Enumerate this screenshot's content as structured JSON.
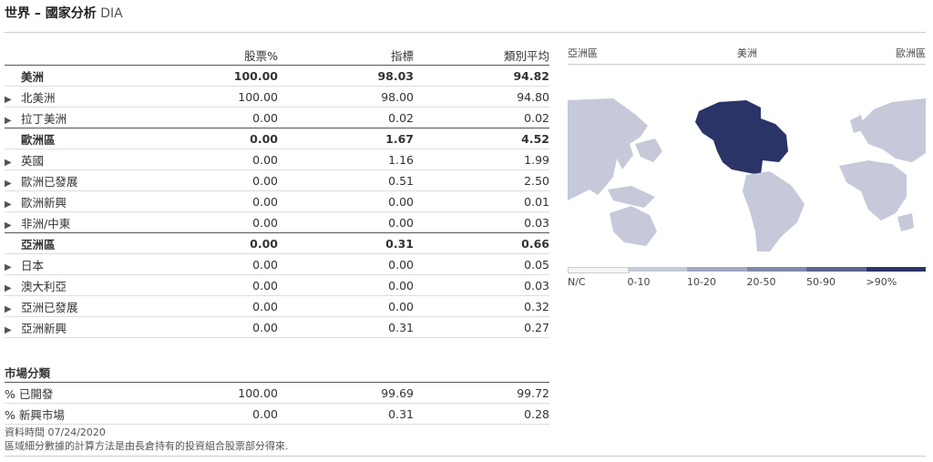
{
  "page": {
    "title": "世界 – 國家分析",
    "fund": "DIA"
  },
  "table": {
    "columns": [
      "股票%",
      "指標",
      "類別平均"
    ],
    "rows": [
      {
        "name": "美洲",
        "group": true,
        "stock": "100.00",
        "index": "98.03",
        "category": "94.82"
      },
      {
        "name": "北美洲",
        "group": false,
        "stock": "100.00",
        "index": "98.00",
        "category": "94.80"
      },
      {
        "name": "拉丁美洲",
        "group": false,
        "stock": "0.00",
        "index": "0.02",
        "category": "0.02"
      },
      {
        "name": "歐洲區",
        "group": true,
        "stock": "0.00",
        "index": "1.67",
        "category": "4.52"
      },
      {
        "name": "英國",
        "group": false,
        "stock": "0.00",
        "index": "1.16",
        "category": "1.99"
      },
      {
        "name": "歐洲已發展",
        "group": false,
        "stock": "0.00",
        "index": "0.51",
        "category": "2.50"
      },
      {
        "name": "歐洲新興",
        "group": false,
        "stock": "0.00",
        "index": "0.00",
        "category": "0.01"
      },
      {
        "name": "非洲/中東",
        "group": false,
        "stock": "0.00",
        "index": "0.00",
        "category": "0.03"
      },
      {
        "name": "亞洲區",
        "group": true,
        "stock": "0.00",
        "index": "0.31",
        "category": "0.66"
      },
      {
        "name": "日本",
        "group": false,
        "stock": "0.00",
        "index": "0.00",
        "category": "0.05"
      },
      {
        "name": "澳大利亞",
        "group": false,
        "stock": "0.00",
        "index": "0.00",
        "category": "0.03"
      },
      {
        "name": "亞洲已發展",
        "group": false,
        "stock": "0.00",
        "index": "0.00",
        "category": "0.32"
      },
      {
        "name": "亞洲新興",
        "group": false,
        "stock": "0.00",
        "index": "0.31",
        "category": "0.27"
      }
    ]
  },
  "market": {
    "title": "市場分類",
    "rows": [
      {
        "name": "% 已開發",
        "stock": "100.00",
        "index": "99.69",
        "category": "99.72"
      },
      {
        "name": "% 新興市場",
        "stock": "0.00",
        "index": "0.31",
        "category": "0.28"
      }
    ]
  },
  "footnote": {
    "date": "資料時間 07/24/2020",
    "note": "區域細分數據的計算方法是由長倉持有的投資組合股票部分得來."
  },
  "map": {
    "regions": [
      "亞洲區",
      "美洲",
      "歐洲區"
    ],
    "colors": {
      "highlight": "#2b3467",
      "land": "#c5c9da",
      "empty": "#f4f4f6"
    },
    "legend": [
      {
        "label": "N/C",
        "color": "#f4f4f6"
      },
      {
        "label": "0-10",
        "color": "#c5c9da"
      },
      {
        "label": "10-20",
        "color": "#a3a9c4"
      },
      {
        "label": "20-50",
        "color": "#8088ab"
      },
      {
        "label": "50-90",
        "color": "#5c6591"
      },
      {
        "label": ">90%",
        "color": "#2b3467"
      }
    ]
  }
}
